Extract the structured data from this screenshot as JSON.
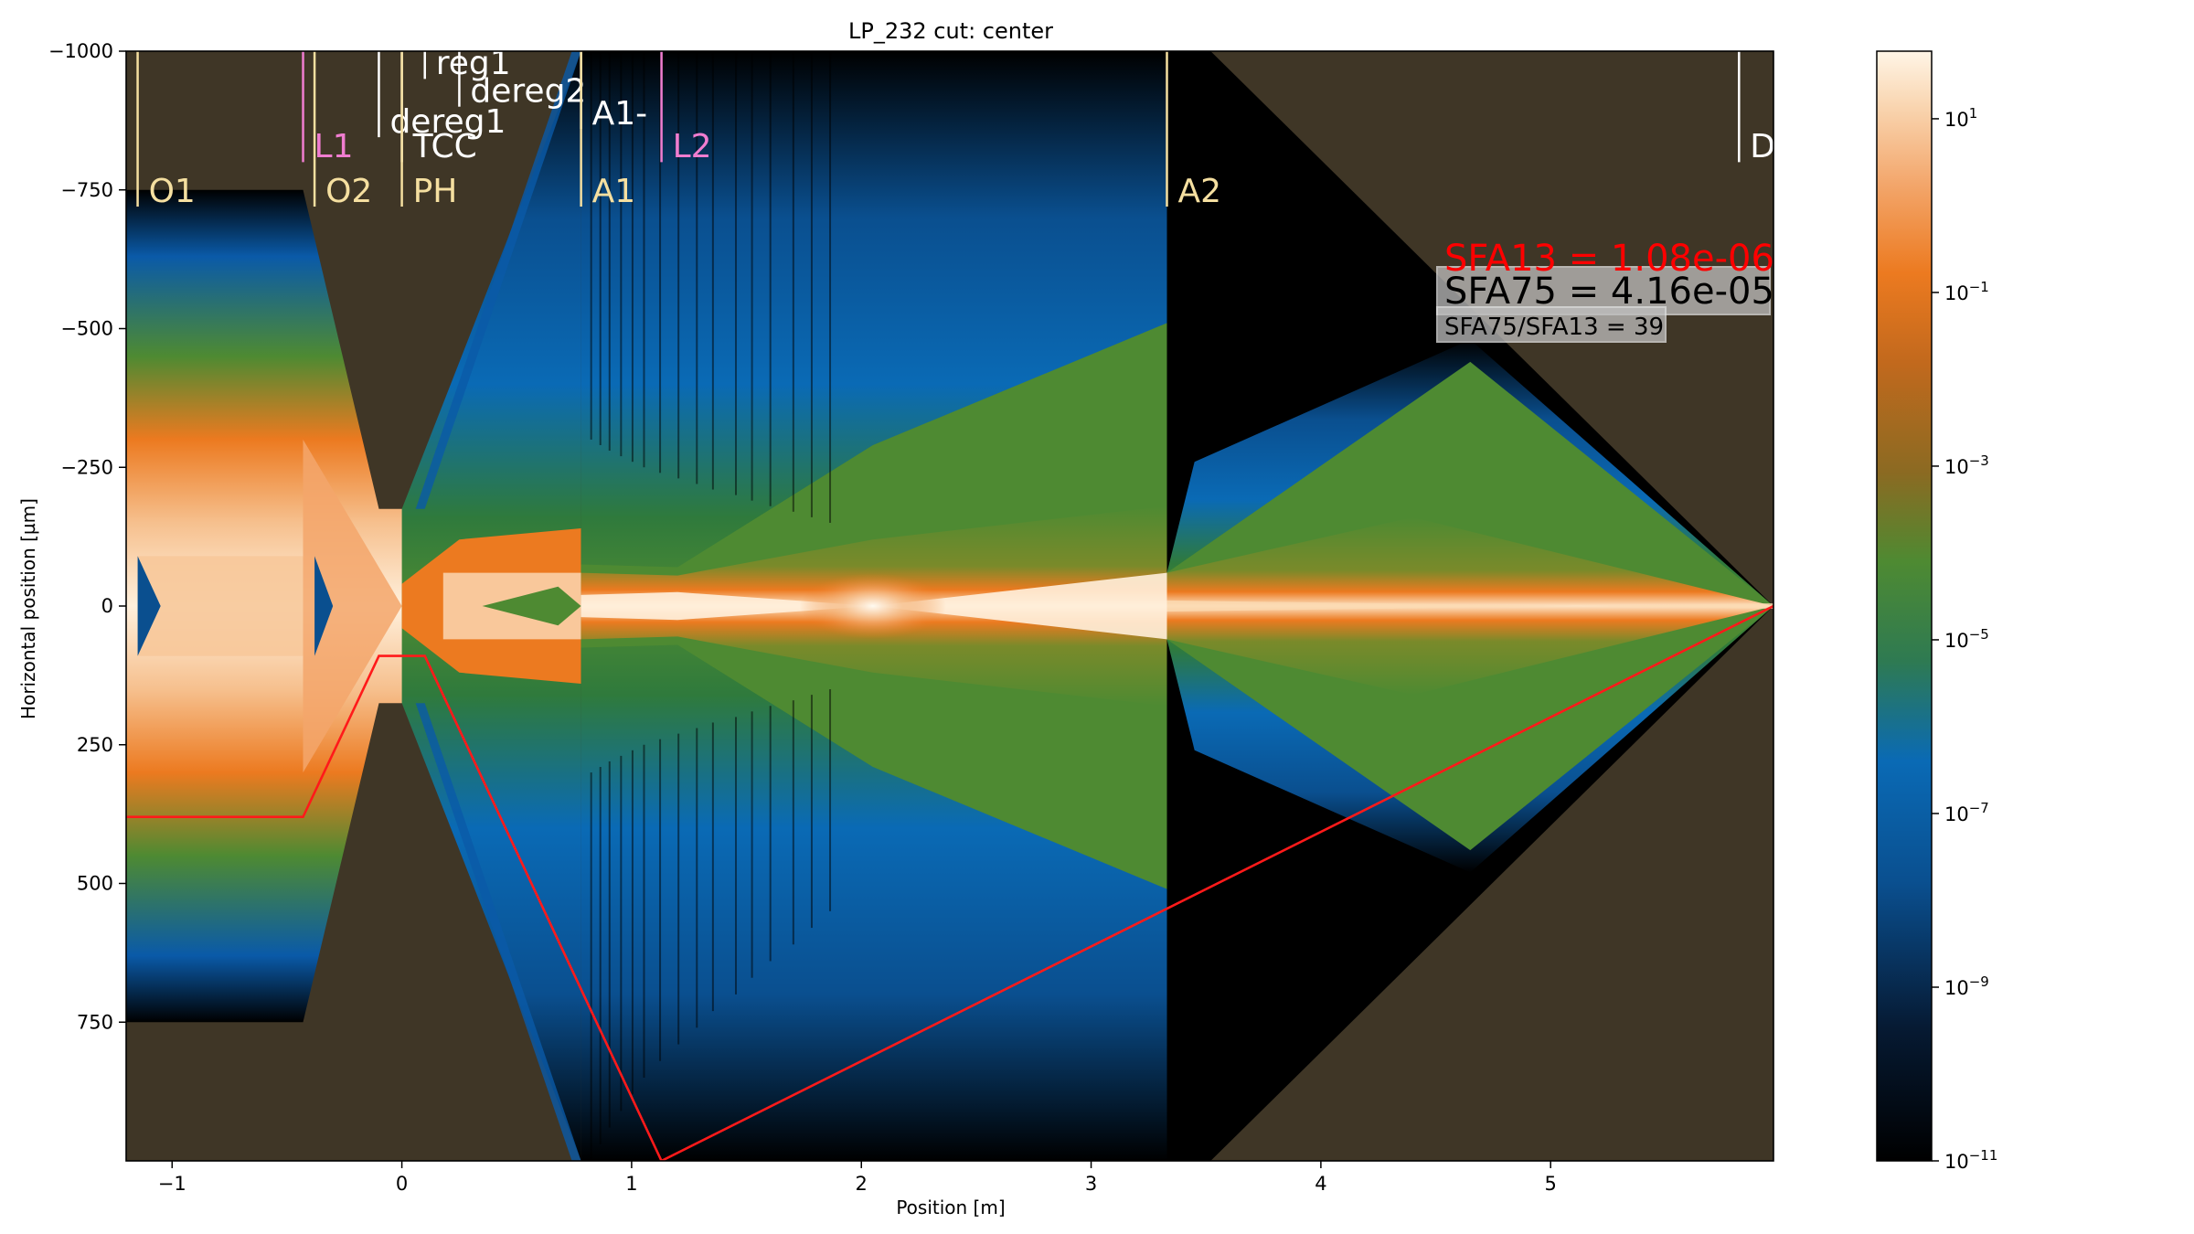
{
  "chart_data": {
    "type": "heatmap",
    "title": "LP_232 cut: center",
    "xlabel": "Position [m]",
    "ylabel": "Horizontal position [µm]",
    "xlim": [
      -1.2,
      5.97
    ],
    "ylim": [
      -1000,
      1000
    ],
    "y_inverted": true,
    "x_ticks": [
      -1,
      0,
      1,
      2,
      3,
      4,
      5
    ],
    "x_tick_labels": [
      "−1",
      "0",
      "1",
      "2",
      "3",
      "4",
      "5"
    ],
    "y_ticks": [
      -1000,
      -750,
      -500,
      -250,
      0,
      250,
      500,
      750
    ],
    "y_tick_labels": [
      "−1000",
      "−750",
      "−500",
      "−250",
      "0",
      "250",
      "500",
      "750"
    ],
    "colorbar": {
      "scale": "log",
      "range": [
        1e-11,
        60
      ],
      "colormap": "dark-blue-green-orange-cream",
      "ticks": [
        {
          "exp": 1,
          "label": "10",
          "sup": "1"
        },
        {
          "exp": -1,
          "label": "10",
          "sup": "−1"
        },
        {
          "exp": -3,
          "label": "10",
          "sup": "−3"
        },
        {
          "exp": -5,
          "label": "10",
          "sup": "−5"
        },
        {
          "exp": -7,
          "label": "10",
          "sup": "−7"
        },
        {
          "exp": -9,
          "label": "10",
          "sup": "−9"
        },
        {
          "exp": -11,
          "label": "10",
          "sup": "−11"
        }
      ]
    },
    "element_markers": [
      {
        "name": "O1",
        "x": -1.15,
        "ytop": -1000,
        "ybot": -720,
        "label_y": -745,
        "color": "#f5dfa0"
      },
      {
        "name": "L1",
        "x": -0.43,
        "ytop": -1000,
        "ybot": -800,
        "label_y": -825,
        "color": "#f07dd0"
      },
      {
        "name": "O2",
        "x": -0.38,
        "ytop": -1000,
        "ybot": -720,
        "label_y": -745,
        "color": "#f5dfa0"
      },
      {
        "name": "dereg1",
        "x": -0.1,
        "ytop": -1000,
        "ybot": -845,
        "label_y": -870,
        "color": "#ffffff"
      },
      {
        "name": "TCC",
        "x": 0.0,
        "ytop": -1000,
        "ybot": -800,
        "label_y": -825,
        "color": "#ffffff"
      },
      {
        "name": "PH",
        "x": 0.0,
        "ytop": -1000,
        "ybot": -720,
        "label_y": -745,
        "color": "#f5dfa0"
      },
      {
        "name": "reg1",
        "x": 0.1,
        "ytop": -1000,
        "ybot": -950,
        "label_y": -975,
        "color": "#ffffff"
      },
      {
        "name": "dereg2",
        "x": 0.25,
        "ytop": -1000,
        "ybot": -900,
        "label_y": -925,
        "color": "#ffffff"
      },
      {
        "name": "A1-",
        "x": 0.78,
        "ytop": -1000,
        "ybot": -860,
        "label_y": -885,
        "color": "#ffffff"
      },
      {
        "name": "A1",
        "x": 0.78,
        "ytop": -1000,
        "ybot": -720,
        "label_y": -745,
        "color": "#f5dfa0"
      },
      {
        "name": "L2",
        "x": 1.13,
        "ytop": -1000,
        "ybot": -800,
        "label_y": -825,
        "color": "#f07dd0"
      },
      {
        "name": "A2",
        "x": 3.33,
        "ytop": -1000,
        "ybot": -720,
        "label_y": -745,
        "color": "#f5dfa0"
      },
      {
        "name": "De",
        "x": 5.82,
        "ytop": -1000,
        "ybot": -800,
        "label_y": -825,
        "color": "#ffffff"
      }
    ],
    "aperture_geometry": {
      "O1": {
        "x": [
          -1.2,
          -0.43
        ],
        "half_width": 750
      },
      "O2_cone": [
        [
          -0.43,
          750
        ],
        [
          -0.1,
          175
        ],
        [
          0.1,
          175
        ]
      ],
      "A1": {
        "x": 0.78
      },
      "A2": {
        "x": 3.33
      },
      "end_cone": [
        [
          3.52,
          1000
        ],
        [
          5.97,
          0
        ]
      ]
    },
    "red_trace": {
      "x": [
        -1.2,
        -0.43,
        -0.1,
        0.1,
        1.13,
        5.97
      ],
      "y": [
        380,
        380,
        90,
        90,
        1000,
        0
      ]
    },
    "annotations": {
      "sfa13": {
        "text": "SFA13 = 1.08e-06",
        "color": "#ff0000"
      },
      "sfa75": {
        "text": "SFA75 = 4.16e-05",
        "color": "#000000"
      },
      "ratio": {
        "text": "SFA75/SFA13 = 39",
        "color": "#000000"
      }
    },
    "colors": {
      "background": "#3f3626",
      "beam_core": "#fff0dc",
      "beam_orange": "#ec7a20",
      "halo_green": "#4e8a32",
      "halo_blue": "#0a5aa8",
      "black": "#000000",
      "trace": "#ff1a1a"
    }
  }
}
